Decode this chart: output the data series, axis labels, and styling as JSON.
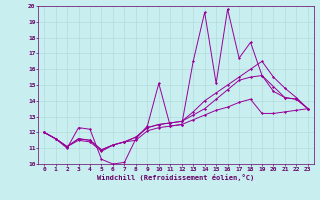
{
  "title": "",
  "xlabel": "Windchill (Refroidissement éolien,°C)",
  "bg_color": "#c8eef0",
  "line_color": "#990099",
  "grid_color": "#b0d8d8",
  "text_color": "#660066",
  "xlim": [
    -0.5,
    23.5
  ],
  "ylim": [
    10,
    20
  ],
  "xticks": [
    0,
    1,
    2,
    3,
    4,
    5,
    6,
    7,
    8,
    9,
    10,
    11,
    12,
    13,
    14,
    15,
    16,
    17,
    18,
    19,
    20,
    21,
    22,
    23
  ],
  "yticks": [
    10,
    11,
    12,
    13,
    14,
    15,
    16,
    17,
    18,
    19,
    20
  ],
  "series": [
    [
      12.0,
      11.6,
      11.0,
      12.3,
      12.2,
      10.3,
      10.0,
      10.1,
      11.6,
      12.4,
      15.1,
      12.4,
      12.5,
      16.5,
      19.6,
      15.1,
      19.8,
      16.7,
      17.7,
      15.6,
      14.9,
      14.2,
      14.1,
      13.5
    ],
    [
      12.0,
      11.6,
      11.1,
      11.5,
      11.4,
      10.8,
      11.2,
      11.4,
      11.5,
      12.1,
      12.3,
      12.4,
      12.5,
      12.8,
      13.1,
      13.4,
      13.6,
      13.9,
      14.1,
      13.2,
      13.2,
      13.3,
      13.4,
      13.5
    ],
    [
      12.0,
      11.6,
      11.1,
      11.6,
      11.5,
      10.9,
      11.2,
      11.4,
      11.7,
      12.3,
      12.5,
      12.6,
      12.7,
      13.1,
      13.5,
      14.1,
      14.7,
      15.3,
      15.5,
      15.6,
      14.6,
      14.2,
      14.1,
      13.5
    ],
    [
      12.0,
      11.6,
      11.1,
      11.6,
      11.5,
      10.9,
      11.2,
      11.4,
      11.7,
      12.3,
      12.5,
      12.6,
      12.7,
      13.3,
      14.0,
      14.5,
      15.0,
      15.5,
      16.0,
      16.5,
      15.5,
      14.8,
      14.2,
      13.5
    ]
  ]
}
